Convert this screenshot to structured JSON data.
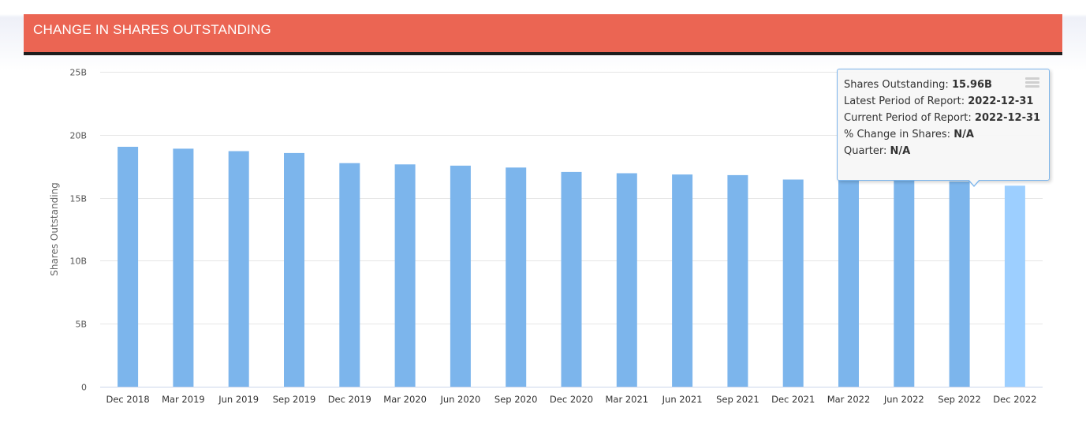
{
  "header": {
    "title": "CHANGE IN SHARES OUTSTANDING"
  },
  "chart_data": {
    "type": "bar",
    "title": "",
    "xlabel": "",
    "ylabel": "Shares Outstanding",
    "ylim": [
      0,
      25
    ],
    "yticks": [
      "0",
      "5B",
      "10B",
      "15B",
      "20B",
      "25B"
    ],
    "ytick_values": [
      0,
      5,
      10,
      15,
      20,
      25
    ],
    "categories": [
      "Dec 2018",
      "Mar 2019",
      "Jun 2019",
      "Sep 2019",
      "Dec 2019",
      "Mar 2020",
      "Jun 2020",
      "Sep 2020",
      "Dec 2020",
      "Mar 2021",
      "Jun 2021",
      "Sep 2021",
      "Dec 2021",
      "Mar 2022",
      "Jun 2022",
      "Sep 2022",
      "Dec 2022"
    ],
    "series": [
      {
        "values": [
          19.05,
          18.9,
          18.7,
          18.55,
          17.75,
          17.65,
          17.55,
          17.4,
          17.05,
          16.95,
          16.85,
          16.8,
          16.45,
          16.4,
          16.4,
          16.3,
          15.96
        ]
      }
    ],
    "highlight_index": 16,
    "grid": true,
    "colors": {
      "bar": "#7cb5ec",
      "bar_highlight": "#9dcfff",
      "grid": "#e6e6e6",
      "axis": "#ccd6eb",
      "tick_label": "#555555"
    }
  },
  "tooltip": {
    "rows": [
      {
        "label": "Shares Outstanding: ",
        "value": "15.96B"
      },
      {
        "label": "Latest Period of Report: ",
        "value": "2022-12-31"
      },
      {
        "label": "Current Period of Report: ",
        "value": "2022-12-31"
      },
      {
        "label": "% Change in Shares: ",
        "value": "N/A"
      },
      {
        "label": "Quarter: ",
        "value": "N/A"
      }
    ]
  },
  "icons": {
    "menu": "hamburger-menu-icon"
  }
}
